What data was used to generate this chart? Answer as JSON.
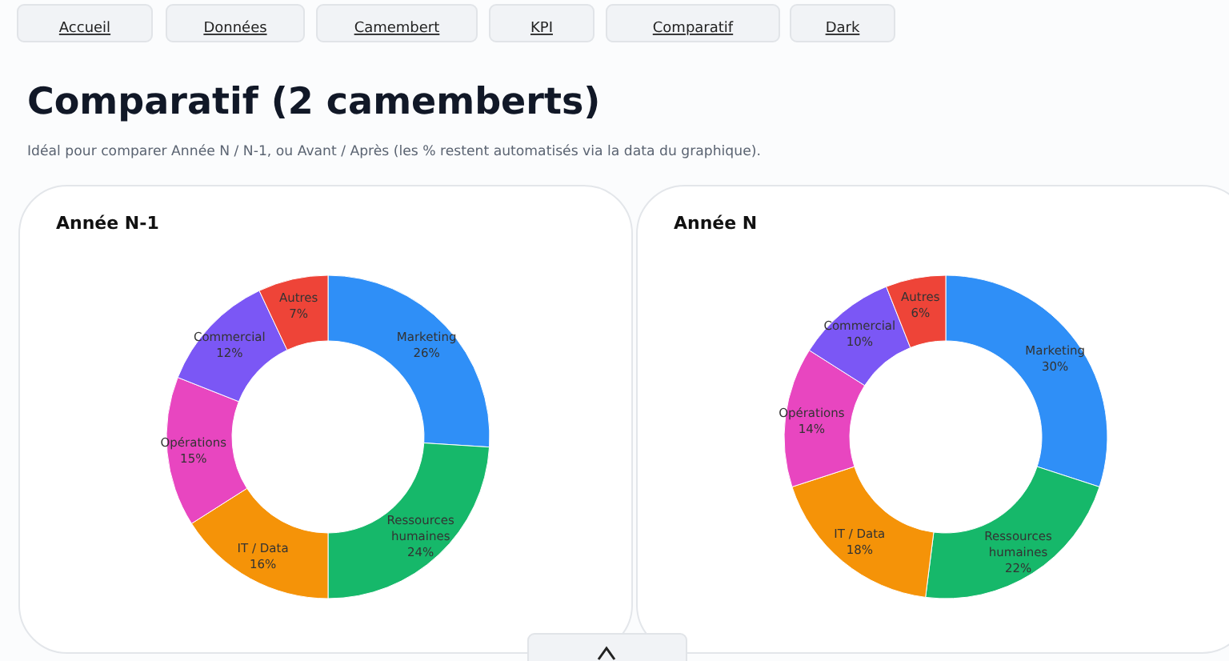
{
  "chart_data": [
    {
      "type": "donut",
      "title": "Année N-1",
      "categories": [
        "Marketing",
        "Ressources humaines",
        "IT / Data",
        "Opérations",
        "Commercial",
        "Autres"
      ],
      "values": [
        26,
        24,
        16,
        15,
        12,
        7
      ],
      "value_labels": [
        "26%",
        "24%",
        "16%",
        "15%",
        "12%",
        "7%"
      ],
      "colors": [
        "#2f8ff7",
        "#16b86a",
        "#f59308",
        "#e846c0",
        "#7b57f5",
        "#ee4438"
      ],
      "annotations": [
        "Accueil",
        "Données",
        "Camembert",
        "KPI",
        "Comparatif",
        "Dark",
        "Comparatif (2 camemberts)",
        "Idéal pour comparer Année N / N-1, ou Avant / Après (les % restent automatisés via la data du graphique)."
      ]
    },
    {
      "type": "donut",
      "title": "Année N",
      "categories": [
        "Marketing",
        "Ressources humaines",
        "IT / Data",
        "Opérations",
        "Commercial",
        "Autres"
      ],
      "values": [
        30,
        22,
        18,
        14,
        10,
        6
      ],
      "value_labels": [
        "30%",
        "22%",
        "18%",
        "14%",
        "10%",
        "6%"
      ],
      "colors": [
        "#2f8ff7",
        "#16b86a",
        "#f59308",
        "#e846c0",
        "#7b57f5",
        "#ee4438"
      ]
    }
  ]
}
